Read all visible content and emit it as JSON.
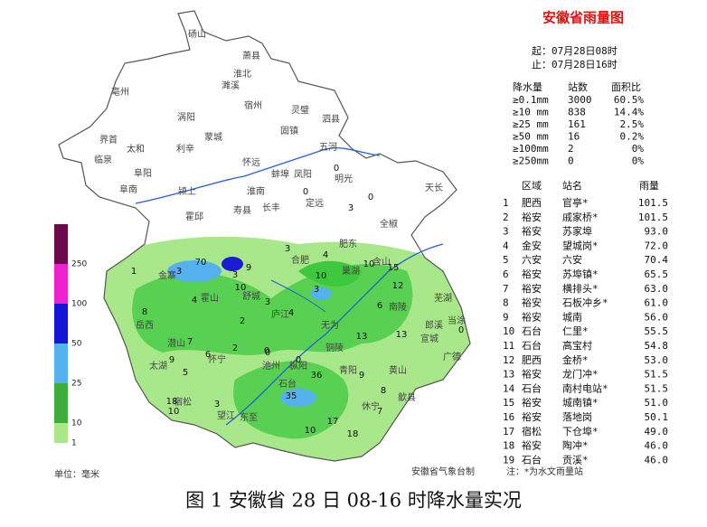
{
  "header": {
    "title": "安徽省雨量图",
    "start": "起：07月28日08时",
    "end": "止：07月28日16时"
  },
  "stats": {
    "header": [
      "降水量",
      "站数",
      "面积比"
    ],
    "rows": [
      [
        "≥0.1mm",
        "3000",
        "60.5%"
      ],
      [
        "≥10 mm",
        "838",
        "14.4%"
      ],
      [
        "≥25 mm",
        "161",
        "2.5%"
      ],
      [
        "≥50 mm",
        "16",
        "0.2%"
      ],
      [
        "≥100mm",
        "2",
        "0%"
      ],
      [
        "≥250mm",
        "0",
        "0%"
      ]
    ]
  },
  "ranking": {
    "header": [
      "区域",
      "站名",
      "雨量"
    ],
    "rows": [
      [
        "1",
        "肥西",
        "官亭*",
        "101.5"
      ],
      [
        "2",
        "裕安",
        "戚家桥*",
        "101.5"
      ],
      [
        "3",
        "裕安",
        "苏家埠",
        "93.0"
      ],
      [
        "4",
        "金安",
        "望城岗*",
        "72.0"
      ],
      [
        "5",
        "六安",
        "六安",
        "70.4"
      ],
      [
        "6",
        "裕安",
        "苏埠镇*",
        "65.5"
      ],
      [
        "7",
        "裕安",
        "横排头*",
        "63.0"
      ],
      [
        "8",
        "裕安",
        "石板冲乡*",
        "61.0"
      ],
      [
        "9",
        "裕安",
        "城南",
        "56.0"
      ],
      [
        "10",
        "石台",
        "仁里*",
        "55.5"
      ],
      [
        "11",
        "石台",
        "高宝村",
        "54.8"
      ],
      [
        "12",
        "肥西",
        "金桥*",
        "53.0"
      ],
      [
        "13",
        "裕安",
        "龙门冲*",
        "51.5"
      ],
      [
        "14",
        "石台",
        "南村电站*",
        "51.5"
      ],
      [
        "15",
        "裕安",
        "城南镇*",
        "51.0"
      ],
      [
        "16",
        "裕安",
        "落地岗",
        "50.1"
      ],
      [
        "17",
        "宿松",
        "下仓埠*",
        "49.0"
      ],
      [
        "18",
        "裕安",
        "陶冲*",
        "46.0"
      ],
      [
        "19",
        "石台",
        "贡溪*",
        "46.0"
      ]
    ]
  },
  "legend": {
    "labels": [
      "250",
      "100",
      "50",
      "25",
      "10",
      "1"
    ],
    "unit": "单位：毫米"
  },
  "map": {
    "places": [
      "砀山",
      "萧县",
      "淮北",
      "濉溪",
      "宿州",
      "灵璧",
      "泗县",
      "涡阳",
      "亳州",
      "蒙城",
      "固镇",
      "五河",
      "界首",
      "太和",
      "利辛",
      "临泉",
      "阜阳",
      "怀远",
      "蚌埠",
      "凤阳",
      "明光",
      "颍上",
      "淮南",
      "长丰",
      "定远",
      "天长",
      "阜南",
      "霍邱",
      "寿县",
      "全椒",
      "肥东",
      "合肥",
      "巢湖",
      "含山",
      "舒城",
      "庐江",
      "无为",
      "霍山",
      "岳西",
      "潜山",
      "太湖",
      "怀宁",
      "枞阳",
      "铜陵",
      "南陵",
      "宿松",
      "望江",
      "东至",
      "池州",
      "石台",
      "青阳",
      "黄山",
      "歙县",
      "休宁",
      "宣城",
      "广德",
      "郎溪",
      "芜湖",
      "当涂",
      "金寨"
    ],
    "values": [
      "70",
      "9",
      "3",
      "0",
      "0",
      "0",
      "0",
      "3",
      "4",
      "10",
      "15",
      "12",
      "3",
      "10",
      "3",
      "2",
      "5",
      "6",
      "7",
      "13",
      "13",
      "10",
      "9",
      "2",
      "0",
      "0",
      "3",
      "4",
      "8",
      "36",
      "35",
      "18",
      "3",
      "10",
      "17",
      "18",
      "8",
      "7",
      "6",
      "1",
      "0",
      "3",
      "10",
      "9",
      "4"
    ]
  },
  "source": "安徽省气象台制",
  "note": "注：*为水文雨量站",
  "caption": "图 1 安徽省 28 日 08-16 时降水量实况"
}
